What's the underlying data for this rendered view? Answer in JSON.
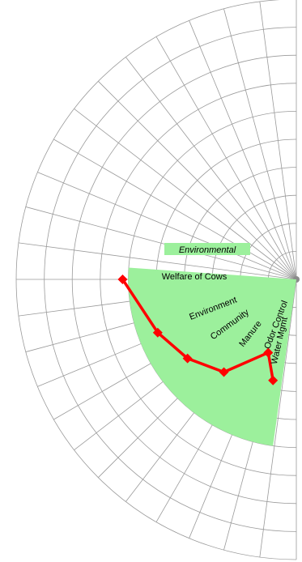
{
  "chart_data": {
    "type": "polar-line",
    "title": "",
    "scale": {
      "min": 0,
      "max": 10,
      "rings": 10,
      "spokes_per_half": 24
    },
    "sector": {
      "title": "Environmental",
      "color": "#9cf09c"
    },
    "series": [
      {
        "color": "#ff0000",
        "points": [
          {
            "label": "Welfare of Cows",
            "angle": 180,
            "value": 6.2
          },
          {
            "label": "Environment",
            "angle": 201,
            "value": 5.3
          },
          {
            "label": "Community",
            "angle": 216,
            "value": 4.8
          },
          {
            "label": "Manure",
            "angle": 232,
            "value": 4.2
          },
          {
            "label": "Odor Control",
            "angle": 249,
            "value": 2.8
          },
          {
            "label": "Water Mgmt",
            "angle": 257,
            "value": 3.7
          }
        ]
      }
    ],
    "grid": true,
    "legend": "none"
  }
}
